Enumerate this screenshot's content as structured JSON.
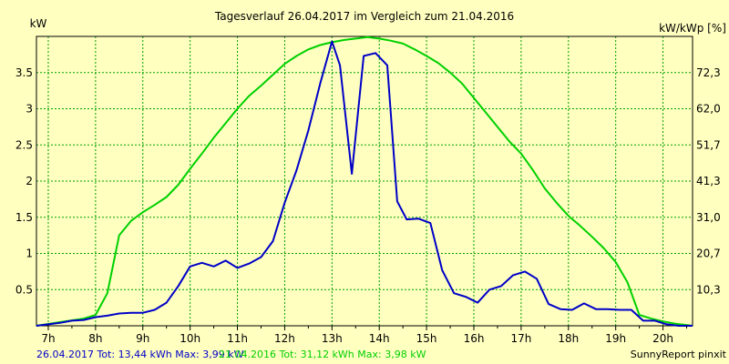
{
  "chart_data": {
    "type": "line",
    "title": "Tagesverlauf 26.04.2017 im Vergleich zum 21.04.2016",
    "ylabel_left": "kW",
    "ylabel_right": "kW/kWp [%]",
    "x_ticks": [
      "7h",
      "8h",
      "9h",
      "10h",
      "11h",
      "12h",
      "13h",
      "14h",
      "15h",
      "16h",
      "17h",
      "18h",
      "19h",
      "20h"
    ],
    "xlim": [
      6.75,
      20.625
    ],
    "y_ticks_left": [
      "0.5",
      "1",
      "1.5",
      "2",
      "2.5",
      "3",
      "3.5"
    ],
    "y_ticks_right": [
      "10,3",
      "20,7",
      "31,0",
      "41,3",
      "51,7",
      "62,0",
      "72,3"
    ],
    "ylim": [
      0,
      4.0
    ],
    "grid": true,
    "series": [
      {
        "name": "26.04.2017",
        "color": "#0000c8",
        "x": [
          6.75,
          7.0,
          7.25,
          7.5,
          7.75,
          8.0,
          8.25,
          8.5,
          8.75,
          9.0,
          9.25,
          9.5,
          9.75,
          10.0,
          10.25,
          10.5,
          10.75,
          11.0,
          11.25,
          11.5,
          11.75,
          12.0,
          12.25,
          12.5,
          12.75,
          13.0,
          13.17,
          13.42,
          13.67,
          13.92,
          14.17,
          14.38,
          14.58,
          14.83,
          15.08,
          15.33,
          15.58,
          15.83,
          16.08,
          16.33,
          16.58,
          16.83,
          17.08,
          17.33,
          17.58,
          17.83,
          18.08,
          18.33,
          18.58,
          18.83,
          19.08,
          19.33,
          19.58,
          19.83,
          20.08,
          20.33,
          20.625
        ],
        "values": [
          0.0,
          0.02,
          0.04,
          0.07,
          0.08,
          0.12,
          0.14,
          0.17,
          0.18,
          0.18,
          0.22,
          0.32,
          0.55,
          0.82,
          0.87,
          0.82,
          0.9,
          0.8,
          0.86,
          0.95,
          1.17,
          1.7,
          2.15,
          2.7,
          3.35,
          3.93,
          3.6,
          2.1,
          3.73,
          3.77,
          3.6,
          1.72,
          1.47,
          1.48,
          1.42,
          0.77,
          0.45,
          0.4,
          0.32,
          0.5,
          0.55,
          0.7,
          0.75,
          0.65,
          0.3,
          0.23,
          0.22,
          0.31,
          0.23,
          0.23,
          0.22,
          0.22,
          0.07,
          0.07,
          0.02,
          0.0,
          0.0
        ]
      },
      {
        "name": "21.04.2016",
        "color": "#00d000",
        "x": [
          6.75,
          7.25,
          7.75,
          8.0,
          8.25,
          8.5,
          8.75,
          9.0,
          9.25,
          9.5,
          9.75,
          10.0,
          10.25,
          10.5,
          10.75,
          11.0,
          11.25,
          11.5,
          11.75,
          12.0,
          12.25,
          12.5,
          12.75,
          13.0,
          13.25,
          13.5,
          13.75,
          14.0,
          14.25,
          14.5,
          14.75,
          15.0,
          15.25,
          15.5,
          15.75,
          16.0,
          16.25,
          16.5,
          16.75,
          17.0,
          17.25,
          17.5,
          17.75,
          18.0,
          18.25,
          18.5,
          18.75,
          19.0,
          19.25,
          19.5,
          19.75,
          20.0,
          20.25,
          20.625
        ],
        "values": [
          0.0,
          0.05,
          0.1,
          0.15,
          0.45,
          1.25,
          1.45,
          1.57,
          1.67,
          1.78,
          1.95,
          2.17,
          2.38,
          2.6,
          2.8,
          3.0,
          3.18,
          3.32,
          3.47,
          3.62,
          3.73,
          3.82,
          3.88,
          3.92,
          3.95,
          3.97,
          3.99,
          3.97,
          3.94,
          3.9,
          3.82,
          3.73,
          3.63,
          3.5,
          3.35,
          3.15,
          2.95,
          2.75,
          2.55,
          2.38,
          2.15,
          1.9,
          1.7,
          1.52,
          1.38,
          1.23,
          1.07,
          0.88,
          0.6,
          0.15,
          0.1,
          0.06,
          0.03,
          0.0
        ]
      }
    ]
  },
  "footer": {
    "series1_text": "26.04.2017 Tot: 13,44 kWh Max: 3,99 kW",
    "series2_text": "21.04.2016 Tot: 31,12 kWh Max: 3,98 kW",
    "brand": "SunnyReport pinxit"
  }
}
